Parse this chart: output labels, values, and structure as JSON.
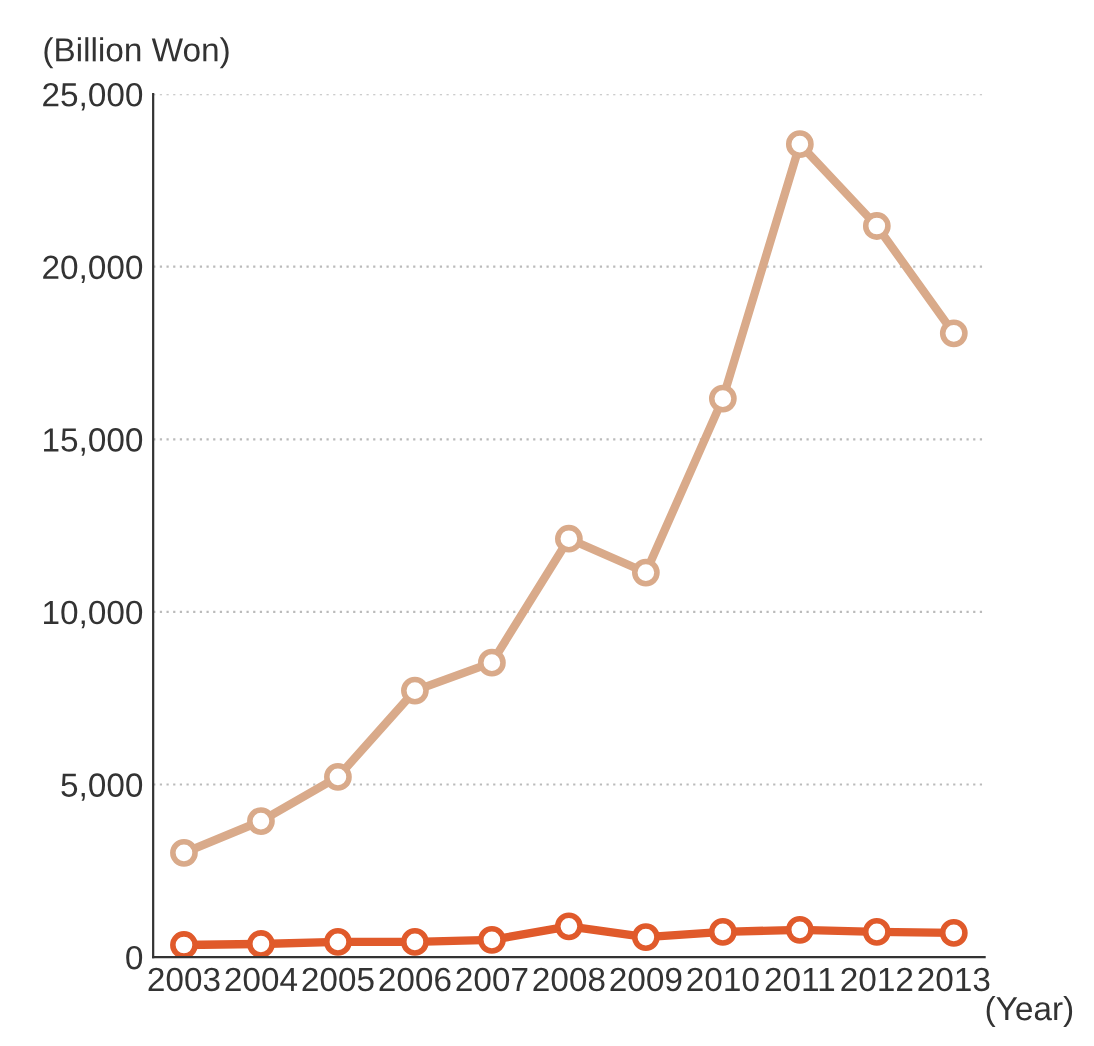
{
  "chart_data": {
    "type": "line",
    "ylabel": "(Billion Won)",
    "xlabel": "(Year)",
    "categories": [
      "2003",
      "2004",
      "2005",
      "2006",
      "2007",
      "2008",
      "2009",
      "2010",
      "2011",
      "2012",
      "2013"
    ],
    "series": [
      {
        "color": "#d9aa8a",
        "values": [
          3020,
          3940,
          5220,
          7720,
          8530,
          12120,
          11140,
          16180,
          23550,
          21180,
          18070
        ]
      },
      {
        "color": "#e05a2b",
        "values": [
          350,
          380,
          440,
          440,
          500,
          890,
          580,
          730,
          790,
          730,
          700
        ]
      }
    ],
    "ylim": [
      0,
      25000
    ],
    "yticks": [
      {
        "value": 0,
        "label": "0"
      },
      {
        "value": 5000,
        "label": "5,000"
      },
      {
        "value": 10000,
        "label": "10,000"
      },
      {
        "value": 15000,
        "label": "15,000"
      },
      {
        "value": 20000,
        "label": "20,000"
      },
      {
        "value": 25000,
        "label": "25,000"
      }
    ],
    "grid": "y",
    "marker": "circle",
    "line_style": "solid"
  }
}
